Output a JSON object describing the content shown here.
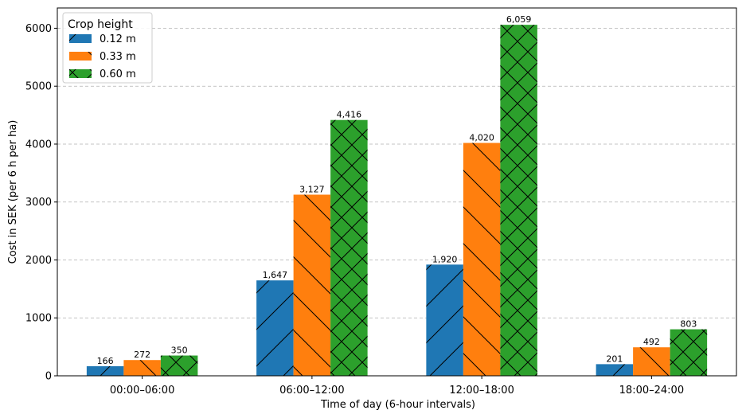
{
  "chart_data": {
    "type": "bar",
    "categories": [
      "00:00–06:00",
      "06:00–12:00",
      "12:00–18:00",
      "18:00–24:00"
    ],
    "series": [
      {
        "name": "0.12 m",
        "values": [
          166,
          1647,
          1920,
          201
        ],
        "color": "#1f77b4",
        "hatch": "forward-diagonal"
      },
      {
        "name": "0.33 m",
        "values": [
          272,
          3127,
          4020,
          492
        ],
        "color": "#ff7f0e",
        "hatch": "back-diagonal"
      },
      {
        "name": "0.60 m",
        "values": [
          350,
          4416,
          6059,
          803
        ],
        "color": "#2ca02c",
        "hatch": "cross"
      }
    ],
    "data_labels": [
      [
        "166",
        "1,647",
        "1,920",
        "201"
      ],
      [
        "272",
        "3,127",
        "4,020",
        "492"
      ],
      [
        "350",
        "4,416",
        "6,059",
        "803"
      ]
    ],
    "title": "",
    "xlabel": "Time of day (6-hour intervals)",
    "ylabel": "Cost in SEK (per 6 h per ha)",
    "ylim": [
      0,
      6350
    ],
    "yticks": [
      0,
      1000,
      2000,
      3000,
      4000,
      5000,
      6000
    ],
    "ytick_labels": [
      "0",
      "1000",
      "2000",
      "3000",
      "4000",
      "5000",
      "6000"
    ],
    "grid": "y-dashed",
    "legend": {
      "title": "Crop height",
      "placement": "top-left"
    }
  }
}
